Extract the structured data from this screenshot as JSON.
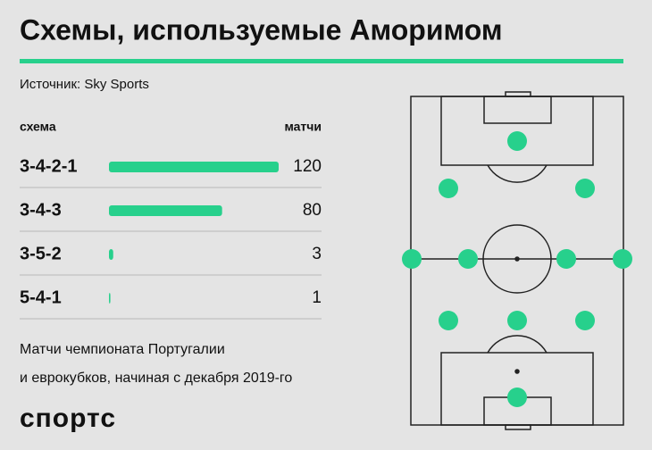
{
  "chart_data": {
    "type": "bar",
    "title": "Схемы, используемые Аморимом",
    "subtitle": "Источник: Sky Sports",
    "category_header": "схема",
    "value_header": "матчи",
    "categories": [
      "3-4-2-1",
      "3-4-3",
      "3-5-2",
      "5-4-1"
    ],
    "values": [
      120,
      80,
      3,
      1
    ],
    "color": "#27d08c",
    "note": [
      "Матчи чемпионата Португалии",
      "и еврокубков, начиная с декабря 2019-го"
    ],
    "logo": "спортс"
  }
}
